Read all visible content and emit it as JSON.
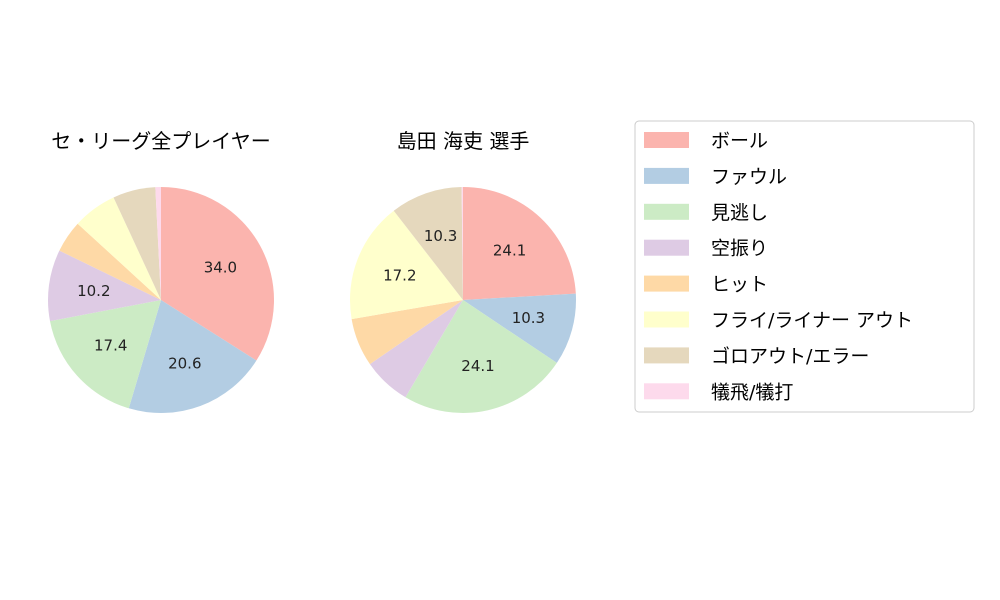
{
  "chart_data": [
    {
      "type": "pie",
      "title": "セ・リーグ全プレイヤー",
      "categories": [
        "ボール",
        "ファウル",
        "見逃し",
        "空振り",
        "ヒット",
        "フライ/ライナー アウト",
        "ゴロアウト/エラー",
        "犠飛/犠打"
      ],
      "values": [
        34.0,
        20.6,
        17.4,
        10.2,
        4.6,
        6.3,
        6.1,
        0.8
      ],
      "labels": [
        "34.0",
        "20.6",
        "17.4",
        "10.2",
        "",
        "",
        "",
        ""
      ]
    },
    {
      "type": "pie",
      "title": "島田 海吏  選手",
      "categories": [
        "ボール",
        "ファウル",
        "見逃し",
        "空振り",
        "ヒット",
        "フライ/ライナー アウト",
        "ゴロアウト/エラー",
        "犠飛/犠打"
      ],
      "values": [
        24.1,
        10.3,
        24.1,
        6.9,
        6.9,
        17.2,
        10.3,
        0.2
      ],
      "labels": [
        "24.1",
        "10.3",
        "24.1",
        "",
        "",
        "17.2",
        "10.3",
        ""
      ]
    }
  ],
  "legend": {
    "placement": "right",
    "entries": [
      "ボール",
      "ファウル",
      "見逃し",
      "空振り",
      "ヒット",
      "フライ/ライナー アウト",
      "ゴロアウト/エラー",
      "犠飛/犠打"
    ]
  },
  "colors": [
    "#fbb4ae",
    "#b3cde3",
    "#ccebc5",
    "#decbe4",
    "#fed9a6",
    "#ffffcc",
    "#e5d8bd",
    "#fddaec"
  ]
}
